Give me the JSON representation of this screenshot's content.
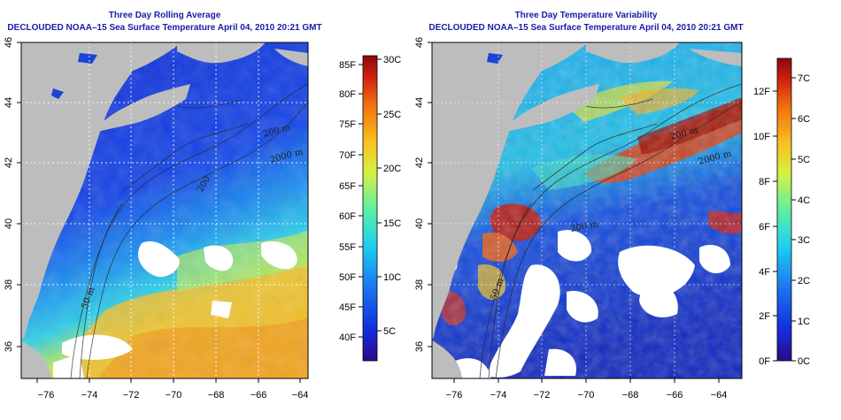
{
  "panels": [
    {
      "id": "left",
      "title_line1": "Three Day Rolling Average",
      "title_line2": "DECLOUDED NOAA–15 Sea Surface Temperature April 04, 2010 20:21 GMT",
      "contour_labels": [
        "200 m",
        "2000 m",
        "200",
        "50 m"
      ],
      "colorbar": {
        "left_labels": [
          "85F",
          "80F",
          "75F",
          "70F",
          "65F",
          "60F",
          "55F",
          "50F",
          "45F",
          "40F"
        ],
        "right_labels": [
          "30C",
          "25C",
          "20C",
          "15C",
          "10C",
          "5C"
        ],
        "colors": [
          "#2a0a8a",
          "#1330e0",
          "#1a7cf0",
          "#1fd0f0",
          "#60f0a0",
          "#d8f040",
          "#f8c020",
          "#f07010",
          "#d02010",
          "#8a0a0a"
        ]
      }
    },
    {
      "id": "right",
      "title_line1": "Three Day Temperature Variability",
      "title_line2": "DECLOUDED NOAA–15 Sea Surface Temperature April 04, 2010 20:21 GMT",
      "contour_labels": [
        "200 m",
        "2000 m",
        "200 m",
        "50 m"
      ],
      "colorbar": {
        "left_labels": [
          "12F",
          "10F",
          "8F",
          "6F",
          "4F",
          "2F",
          "0F"
        ],
        "right_labels": [
          "7C",
          "6C",
          "5C",
          "4C",
          "3C",
          "2C",
          "1C",
          "0C"
        ],
        "colors": [
          "#2a0a8a",
          "#1330e0",
          "#1a7cf0",
          "#1fd0f0",
          "#60f0a0",
          "#d8f040",
          "#f8c020",
          "#f07010",
          "#d02010",
          "#8a0a0a"
        ]
      }
    }
  ],
  "axes": {
    "x_ticks": [
      "−76",
      "−74",
      "−72",
      "−70",
      "−68",
      "−66",
      "−64"
    ],
    "y_ticks": [
      "46",
      "44",
      "42",
      "40",
      "38",
      "36"
    ],
    "xlim": [
      -77,
      -63
    ],
    "ylim": [
      35,
      46
    ]
  }
}
